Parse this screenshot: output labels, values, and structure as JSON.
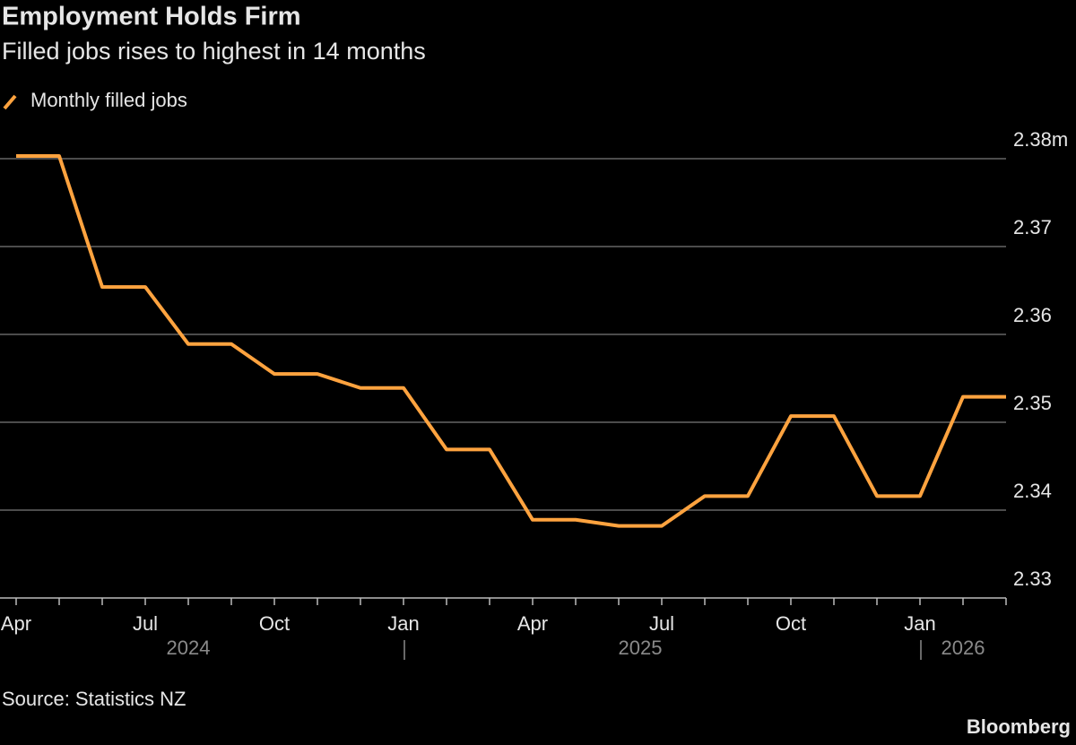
{
  "chart_data": {
    "type": "line",
    "title": "Employment Holds Firm",
    "subtitle": "Filled jobs rises to highest in 14 months",
    "x": [
      "2024-04",
      "2024-05",
      "2024-06",
      "2024-07",
      "2024-08",
      "2024-09",
      "2024-10",
      "2024-11",
      "2024-12",
      "2025-01",
      "2025-02",
      "2025-03",
      "2025-04",
      "2025-05",
      "2025-06",
      "2025-07",
      "2025-08",
      "2025-09",
      "2025-10",
      "2025-11",
      "2025-12",
      "2026-01",
      "2026-02",
      "2026-03"
    ],
    "series": [
      {
        "name": "Monthly filled jobs",
        "color": "#ffa33f",
        "values": [
          2.3803,
          2.3803,
          2.3654,
          2.3654,
          2.3589,
          2.3589,
          2.3555,
          2.3555,
          2.3539,
          2.3539,
          2.3469,
          2.3469,
          2.3389,
          2.3389,
          2.3382,
          2.3382,
          2.3416,
          2.3416,
          2.3507,
          2.3507,
          2.3416,
          2.3416,
          2.3529,
          2.3529
        ]
      }
    ],
    "ylim": [
      2.33,
      2.38
    ],
    "yticks": [
      2.33,
      2.34,
      2.35,
      2.36,
      2.37,
      {
        "value": 2.38,
        "label": "2.38m"
      }
    ],
    "xticks": [
      {
        "value": "2024-04",
        "label": "Apr"
      },
      {
        "value": "2024-07",
        "label": "Jul"
      },
      {
        "value": "2024-10",
        "label": "Oct"
      },
      {
        "value": "2025-01",
        "label": "Jan"
      },
      {
        "value": "2025-04",
        "label": "Apr"
      },
      {
        "value": "2025-07",
        "label": "Jul"
      },
      {
        "value": "2025-10",
        "label": "Oct"
      },
      {
        "value": "2026-01",
        "label": "Jan"
      }
    ],
    "years": [
      "2024",
      "2025",
      "2026"
    ],
    "grid": true,
    "source": "Source: Statistics NZ",
    "brand": "Bloomberg"
  }
}
